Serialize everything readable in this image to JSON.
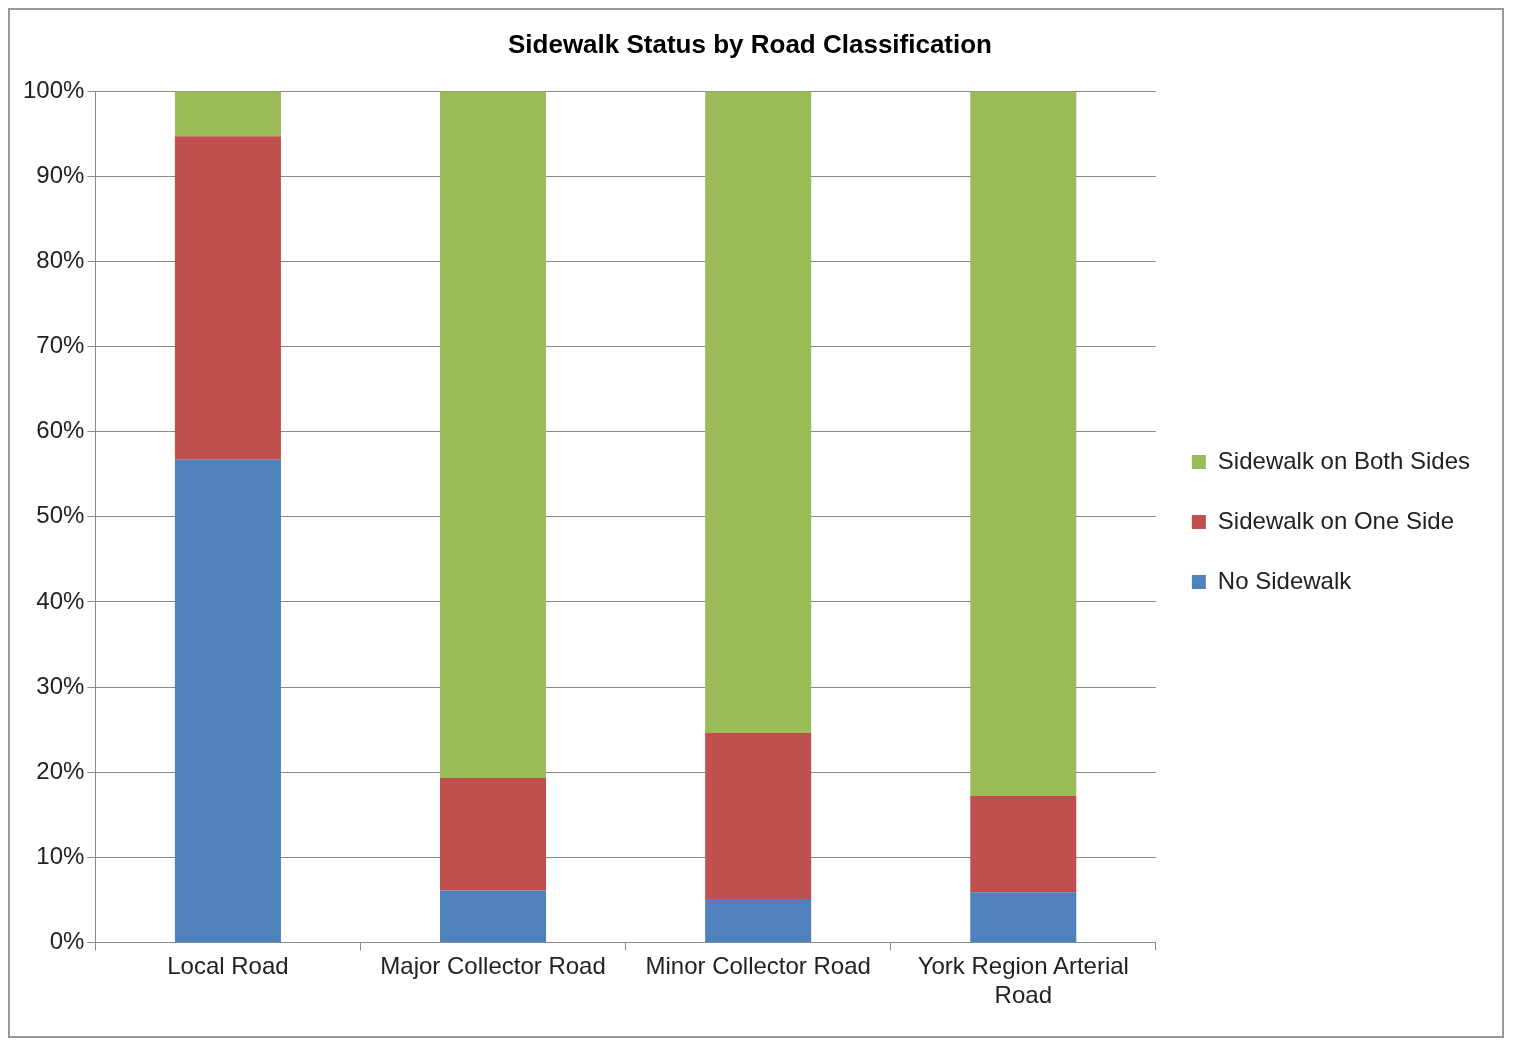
{
  "chart_data": {
    "type": "bar",
    "title": "Sidewalk Status by Road Classification",
    "stacked": true,
    "legend": "right",
    "grid": "y",
    "categories": [
      "Local Road",
      "Major Collector Road",
      "Minor Collector Road",
      "York Region Arterial Road"
    ],
    "series": [
      {
        "name": "No Sidewalk",
        "color": "#4f81bd",
        "values": [
          56.7,
          6.1,
          5.1,
          5.9
        ]
      },
      {
        "name": "Sidewalk on One Side",
        "color": "#c0504d",
        "values": [
          38.0,
          13.2,
          19.5,
          11.3
        ]
      },
      {
        "name": "Sidewalk on Both Sides",
        "color": "#9bbb59",
        "values": [
          5.3,
          80.7,
          75.4,
          82.8
        ]
      }
    ],
    "ylim": [
      0,
      100
    ],
    "yticks": [
      {
        "value": 0,
        "label": "0%"
      },
      {
        "value": 10,
        "label": "10%"
      },
      {
        "value": 20,
        "label": "20%"
      },
      {
        "value": 30,
        "label": "30%"
      },
      {
        "value": 40,
        "label": "40%"
      },
      {
        "value": 50,
        "label": "50%"
      },
      {
        "value": 60,
        "label": "60%"
      },
      {
        "value": 70,
        "label": "70%"
      },
      {
        "value": 80,
        "label": "80%"
      },
      {
        "value": 90,
        "label": "90%"
      },
      {
        "value": 100,
        "label": "100%"
      }
    ]
  }
}
